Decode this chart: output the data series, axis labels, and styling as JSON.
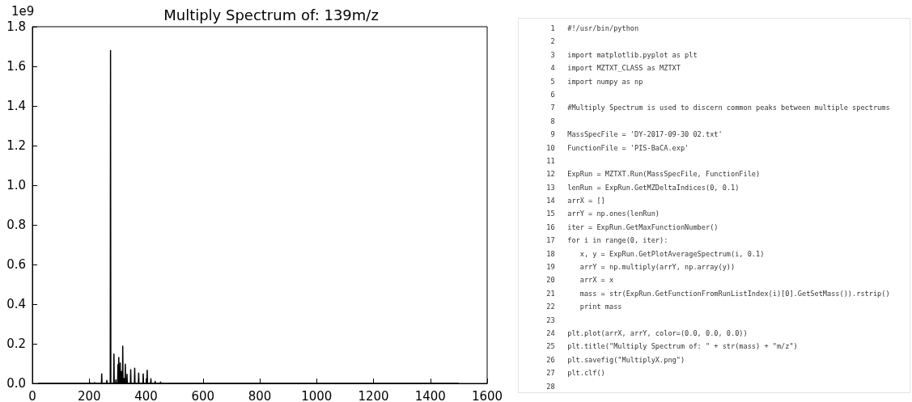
{
  "chart_data": [
    {
      "type": "line",
      "title": "Multiply Spectrum of: 139m/z",
      "annotations": [
        "1e9"
      ],
      "series": [
        {
          "color": "#000000",
          "x": [
            20,
            201,
            202,
            203,
            218,
            219,
            220,
            243,
            244,
            245,
            261,
            262,
            263,
            274,
            275,
            276,
            286,
            287,
            288,
            293,
            294,
            295,
            300,
            301,
            302,
            303,
            304,
            305,
            308,
            309,
            310,
            312,
            313,
            314,
            317,
            318,
            319,
            321,
            322,
            323,
            326,
            327,
            328,
            332,
            333,
            334,
            345,
            346,
            347,
            359,
            360,
            361,
            373,
            374,
            375,
            389,
            390,
            391,
            403,
            404,
            405,
            416,
            417,
            418,
            431,
            432,
            433,
            450,
            451,
            452,
            1500
          ],
          "values": [
            0,
            0,
            0.004,
            0,
            0,
            0.004,
            0,
            0,
            0.048,
            0,
            0,
            0.015,
            0,
            0,
            1.68,
            0,
            0,
            0.148,
            0,
            0,
            0.018,
            0,
            0,
            0.094,
            0,
            0,
            0.131,
            0,
            0,
            0.103,
            0,
            0,
            0.06,
            0,
            0,
            0.188,
            0,
            0,
            0.025,
            0,
            0,
            0.097,
            0,
            0,
            0.046,
            0,
            0,
            0.069,
            0,
            0,
            0.077,
            0,
            0,
            0.052,
            0,
            0,
            0.048,
            0,
            0,
            0.066,
            0,
            0,
            0.023,
            0,
            0,
            0.01,
            0,
            0,
            0.007,
            0,
            0
          ]
        }
      ],
      "xlim": [
        0,
        1600
      ],
      "xticks": [
        0,
        200,
        400,
        600,
        800,
        1000,
        1200,
        1400,
        1600
      ],
      "ylim": [
        0,
        1.8
      ],
      "yticks": [
        {
          "value": 0,
          "label": "0.0"
        },
        0.2,
        0.4,
        0.6,
        0.8,
        {
          "value": 1,
          "label": "1.0"
        },
        1.2,
        1.4,
        1.6,
        1.8
      ],
      "grid": false,
      "marker": "none",
      "line_style": "solid"
    },
    {
      "type": "other",
      "annotations": [
        "1\t#!/usr/bin/python",
        "2",
        "3\timport matplotlib.pyplot as plt",
        "4\timport MZTXT_CLASS as MZTXT",
        "5\timport numpy as np",
        "6",
        "7\t#Multiply Spectrum is used to discern common peaks between multiple spectrums",
        "8",
        "9\tMassSpecFile = 'DY-2017-09-30 02.txt'",
        "10\tFunctionFile = 'PIS-BaCA.exp'",
        "11",
        "12\tExpRun = MZTXT.Run(MassSpecFile, FunctionFile)",
        "13\tlenRun = ExpRun.GetMZDeltaIndices(0, 0.1)",
        "14\tarrX = []",
        "15\tarrY = np.ones(lenRun)",
        "16\titer = ExpRun.GetMaxFunctionNumber()",
        "17\tfor i in range(0, iter):",
        "18\t   x, y = ExpRun.GetPlotAverageSpectrum(i, 0.1)",
        "19\t   arrY = np.multiply(arrY, np.array(y))",
        "20\t   arrX = x",
        "21\t   mass = str(ExpRun.GetFunctionFromRunListIndex(i)[0].GetSetMass()).rstrip()",
        "22\t   print mass",
        "23",
        "24\tplt.plot(arrX, arrY, color=(0.0, 0.0, 0.0))",
        "25\tplt.title(\"Multiply Spectrum of: \" + str(mass) + \"m/z\")",
        "26\tplt.savefig(\"MultiplyX.png\")",
        "27\tplt.clf()",
        "28"
      ]
    }
  ]
}
